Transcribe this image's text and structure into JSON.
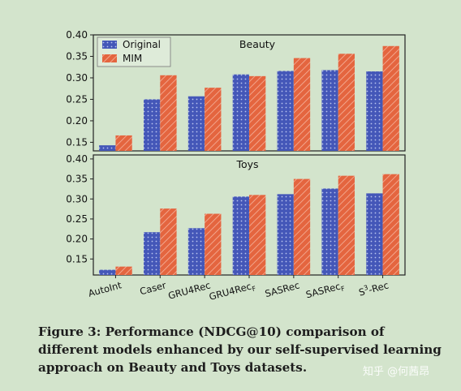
{
  "chart_data": [
    {
      "type": "bar",
      "title": "Beauty",
      "categories": [
        "AutoInt",
        "Caser",
        "GRU4Rec",
        "GRU4RecF",
        "SASRec",
        "SASRecF",
        "S3-Rec"
      ],
      "series": [
        {
          "name": "Original",
          "values": [
            0.143,
            0.25,
            0.257,
            0.308,
            0.316,
            0.318,
            0.315
          ]
        },
        {
          "name": "MIM",
          "values": [
            0.166,
            0.306,
            0.277,
            0.304,
            0.346,
            0.356,
            0.374
          ]
        }
      ],
      "yticks": [
        "0.15",
        "0.20",
        "0.25",
        "0.30",
        "0.35",
        "0.40"
      ],
      "ylim": [
        0.13,
        0.4
      ],
      "legend": "top-left",
      "grid": false
    },
    {
      "type": "bar",
      "title": "Toys",
      "categories": [
        "AutoInt",
        "Caser",
        "GRU4Rec",
        "GRU4RecF",
        "SASRec",
        "SASRecF",
        "S3-Rec"
      ],
      "series": [
        {
          "name": "Original",
          "values": [
            0.123,
            0.217,
            0.227,
            0.306,
            0.312,
            0.326,
            0.314
          ]
        },
        {
          "name": "MIM",
          "values": [
            0.131,
            0.276,
            0.263,
            0.31,
            0.35,
            0.358,
            0.362
          ]
        }
      ],
      "yticks": [
        "0.15",
        "0.20",
        "0.25",
        "0.30",
        "0.35",
        "0.40"
      ],
      "ylim": [
        0.11,
        0.41
      ],
      "grid": false
    }
  ],
  "xtick_labels": [
    {
      "text": "AutoInt",
      "sub": ""
    },
    {
      "text": "Caser",
      "sub": ""
    },
    {
      "text": "GRU4Rec",
      "sub": ""
    },
    {
      "text": "GRU4Rec",
      "sub": "F"
    },
    {
      "text": "SASRec",
      "sub": ""
    },
    {
      "text": "SASRec",
      "sub": "F"
    },
    {
      "text": "S",
      "sup": "3",
      "rest": "-Rec"
    }
  ],
  "colors": {
    "original": "#4457b8",
    "mim": "#e4653f",
    "background": "#d3e4cc"
  },
  "caption": "Figure 3: Performance (NDCG@10) comparison of different models enhanced by our self-supervised learning approach on Beauty and Toys datasets.",
  "watermark": "知乎 @何茜昂"
}
